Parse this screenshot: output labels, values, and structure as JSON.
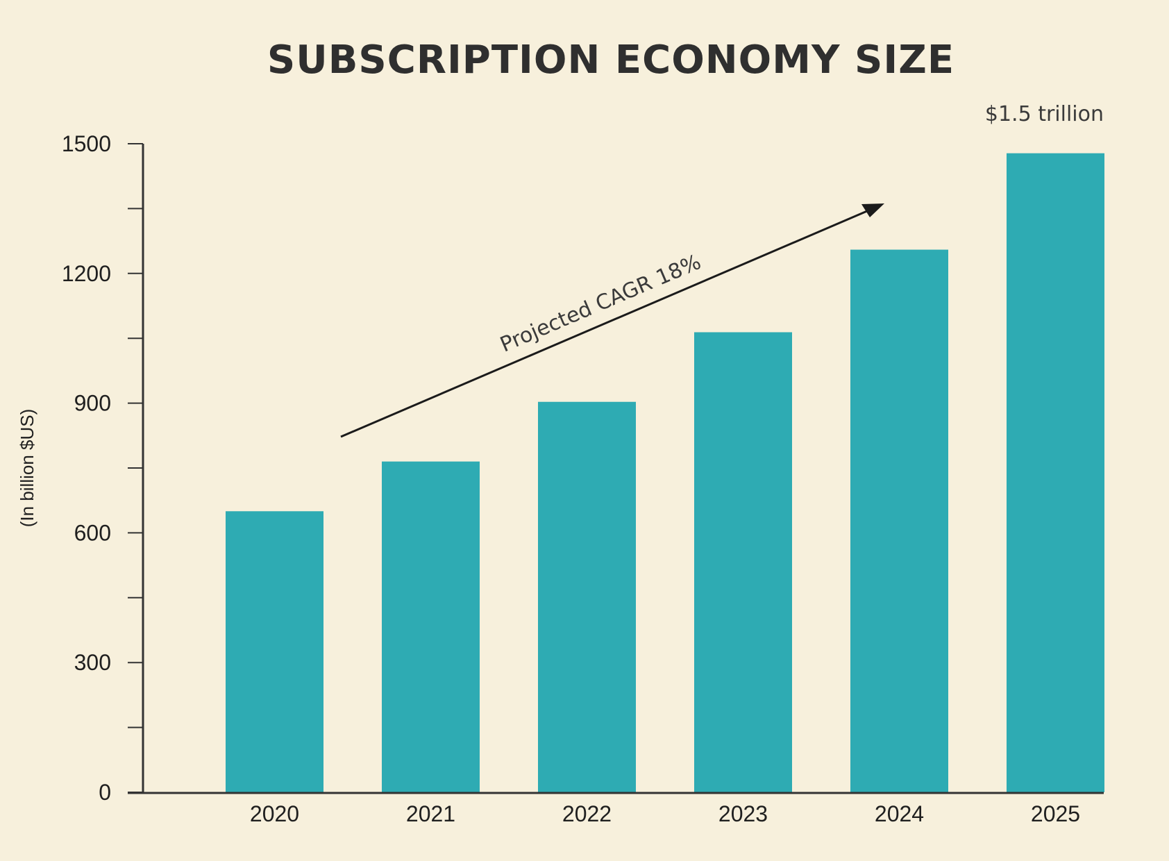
{
  "chart_data": {
    "type": "bar",
    "title": "SUBSCRIPTION ECONOMY SIZE",
    "xlabel": "",
    "ylabel": "(In billion $US)",
    "categories": [
      "2020",
      "2021",
      "2022",
      "2023",
      "2024",
      "2025"
    ],
    "values": [
      650,
      765,
      903,
      1064,
      1255,
      1478
    ],
    "ylim": [
      0,
      1500
    ],
    "yticks": [
      0,
      300,
      600,
      900,
      1200,
      1500
    ],
    "grid": false,
    "bar_color": "#2eabb3",
    "annotations": {
      "cagr_text": "Projected CAGR 18%",
      "total_label": "$1.5 trillion"
    }
  }
}
